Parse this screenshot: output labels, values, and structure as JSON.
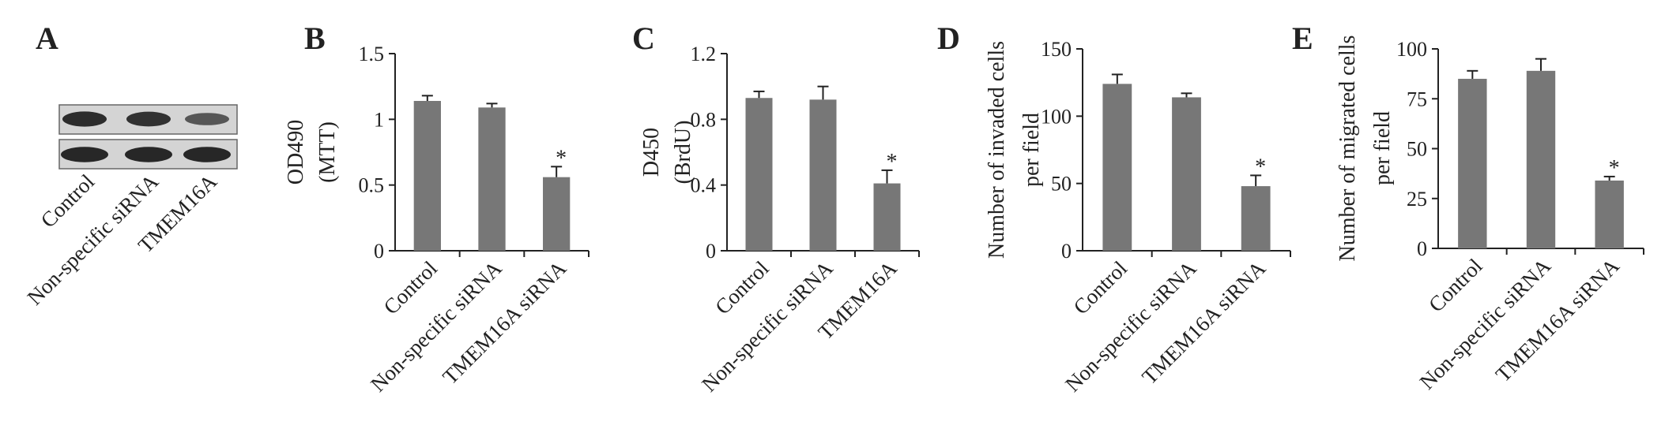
{
  "figure": {
    "panel_a": {
      "letter": "A",
      "lanes": [
        "Control",
        "Non-specific siRNA",
        "TMEM16A"
      ],
      "band_intensity_row1": [
        0.9,
        0.85,
        0.45
      ],
      "band_intensity_row2": [
        0.95,
        0.95,
        0.95
      ]
    }
  },
  "chart_data": [
    {
      "panel": "B",
      "type": "bar",
      "categories": [
        "Control",
        "Non-specific siRNA",
        "TMEM16A siRNA"
      ],
      "values": [
        1.14,
        1.09,
        0.56
      ],
      "errors": [
        0.04,
        0.03,
        0.08
      ],
      "significance": [
        "",
        "",
        "*"
      ],
      "ylabel_lines": [
        "OD490",
        "(MTT)"
      ],
      "ylim": [
        0,
        1.5
      ],
      "yticks": [
        "0",
        "0.5",
        "1",
        "1.5"
      ],
      "ytick_values": [
        0,
        0.5,
        1,
        1.5
      ],
      "xlabel": "",
      "grid": false
    },
    {
      "panel": "C",
      "type": "bar",
      "categories": [
        "Control",
        "Non-specific siRNA",
        "TMEM16A"
      ],
      "values": [
        0.93,
        0.92,
        0.41
      ],
      "errors": [
        0.04,
        0.08,
        0.08
      ],
      "significance": [
        "",
        "",
        "*"
      ],
      "ylabel_lines": [
        "D450",
        "(BrdU)"
      ],
      "ylim": [
        0,
        1.2
      ],
      "yticks": [
        "0",
        "0.4",
        "0.8",
        "1.2"
      ],
      "ytick_values": [
        0,
        0.4,
        0.8,
        1.2
      ],
      "xlabel": "",
      "grid": false
    },
    {
      "panel": "D",
      "type": "bar",
      "categories": [
        "Control",
        "Non-specific siRNA",
        "TMEM16A siRNA"
      ],
      "values": [
        124,
        114,
        48
      ],
      "errors": [
        7,
        3,
        8
      ],
      "significance": [
        "",
        "",
        "*"
      ],
      "ylabel_lines": [
        "Number of invaded cells",
        "per field"
      ],
      "ylim": [
        0,
        150
      ],
      "yticks": [
        "0",
        "50",
        "100",
        "150"
      ],
      "ytick_values": [
        0,
        50,
        100,
        150
      ],
      "xlabel": "",
      "grid": false
    },
    {
      "panel": "E",
      "type": "bar",
      "categories": [
        "Control",
        "Non-specific siRNA",
        "TMEM16A siRNA"
      ],
      "values": [
        85,
        89,
        34
      ],
      "errors": [
        4,
        6,
        2
      ],
      "significance": [
        "",
        "",
        "*"
      ],
      "ylabel_lines": [
        "Number of migrated cells",
        "per field"
      ],
      "ylim": [
        0,
        100
      ],
      "yticks": [
        "0",
        "25",
        "50",
        "75",
        "100"
      ],
      "ytick_values": [
        0,
        25,
        50,
        75,
        100
      ],
      "xlabel": "",
      "grid": false
    }
  ]
}
